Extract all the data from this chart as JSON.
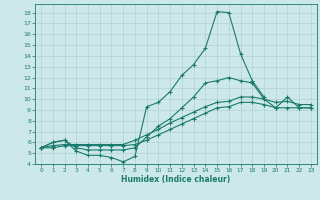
{
  "xlabel": "Humidex (Indice chaleur)",
  "bg_color": "#cde8e8",
  "line_color": "#1a7a6e",
  "grid_color": "#aacece",
  "xlim": [
    -0.5,
    23.5
  ],
  "ylim": [
    4,
    18.8
  ],
  "xticks": [
    0,
    1,
    2,
    3,
    4,
    5,
    6,
    7,
    8,
    9,
    10,
    11,
    12,
    13,
    14,
    15,
    16,
    17,
    18,
    19,
    20,
    21,
    22,
    23
  ],
  "yticks": [
    4,
    5,
    6,
    7,
    8,
    9,
    10,
    11,
    12,
    13,
    14,
    15,
    16,
    17,
    18
  ],
  "lines": [
    {
      "x": [
        0,
        1,
        2,
        3,
        4,
        5,
        6,
        7,
        8,
        9,
        10,
        11,
        12,
        13,
        14,
        15,
        16,
        17,
        18,
        19
      ],
      "y": [
        5.5,
        6.0,
        6.2,
        5.2,
        4.8,
        4.8,
        4.6,
        4.2,
        4.7,
        9.3,
        9.7,
        10.7,
        12.2,
        13.2,
        14.7,
        18.1,
        18.0,
        14.2,
        11.7,
        10.2
      ]
    },
    {
      "x": [
        0,
        1,
        2,
        3,
        4,
        5,
        6,
        7,
        8,
        9,
        10,
        11,
        12,
        13,
        14,
        15,
        16,
        17,
        18,
        19,
        20,
        21,
        22,
        23
      ],
      "y": [
        5.5,
        6.0,
        6.2,
        5.5,
        5.3,
        5.3,
        5.3,
        5.3,
        5.5,
        6.5,
        7.5,
        8.2,
        9.2,
        10.2,
        11.5,
        11.7,
        12.0,
        11.7,
        11.5,
        10.0,
        9.2,
        10.2,
        9.2,
        9.2
      ]
    },
    {
      "x": [
        0,
        1,
        2,
        3,
        4,
        5,
        6,
        7,
        8,
        9,
        10,
        11,
        12,
        13,
        14,
        15,
        16,
        17,
        18,
        19,
        20,
        21,
        22,
        23
      ],
      "y": [
        5.5,
        5.7,
        5.8,
        5.8,
        5.8,
        5.8,
        5.8,
        5.8,
        6.2,
        6.7,
        7.2,
        7.8,
        8.3,
        8.8,
        9.3,
        9.7,
        9.8,
        10.2,
        10.2,
        10.0,
        9.7,
        9.8,
        9.5,
        9.5
      ]
    },
    {
      "x": [
        0,
        1,
        2,
        3,
        4,
        5,
        6,
        7,
        8,
        9,
        10,
        11,
        12,
        13,
        14,
        15,
        16,
        17,
        18,
        19,
        20,
        21,
        22,
        23
      ],
      "y": [
        5.5,
        5.5,
        5.7,
        5.7,
        5.7,
        5.7,
        5.7,
        5.7,
        5.8,
        6.2,
        6.7,
        7.2,
        7.7,
        8.2,
        8.7,
        9.2,
        9.3,
        9.7,
        9.7,
        9.5,
        9.2,
        9.2,
        9.2,
        9.2
      ]
    }
  ]
}
